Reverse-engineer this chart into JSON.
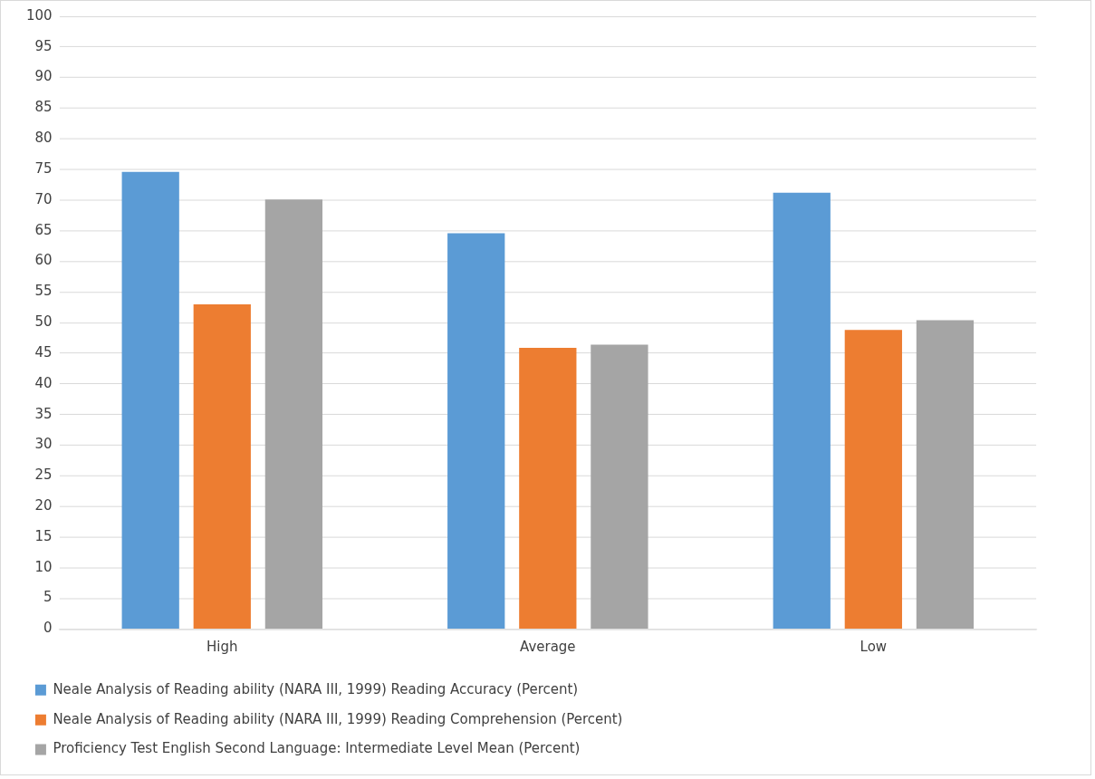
{
  "chart_data": {
    "type": "bar",
    "categories": [
      "High",
      "Average",
      "Low"
    ],
    "series": [
      {
        "name": "Neale Analysis of Reading ability (NARA III, 1999) Reading Accuracy (Percent)",
        "color": "#5b9bd5",
        "values": [
          74.6,
          64.6,
          71.2
        ]
      },
      {
        "name": "Neale Analysis of Reading ability (NARA III, 1999) Reading Comprehension (Percent)",
        "color": "#ed7d31",
        "values": [
          53.0,
          45.9,
          48.8
        ]
      },
      {
        "name": "Proficiency Test English Second Language: Intermediate Level Mean (Percent)",
        "color": "#a5a5a5",
        "values": [
          70.1,
          46.4,
          50.4
        ]
      }
    ],
    "ylim": [
      0,
      100
    ],
    "yticks": [
      0,
      5,
      10,
      15,
      20,
      25,
      30,
      35,
      40,
      45,
      50,
      55,
      60,
      65,
      70,
      75,
      80,
      85,
      90,
      95,
      100
    ],
    "grid": "y",
    "legend": "bottom"
  }
}
